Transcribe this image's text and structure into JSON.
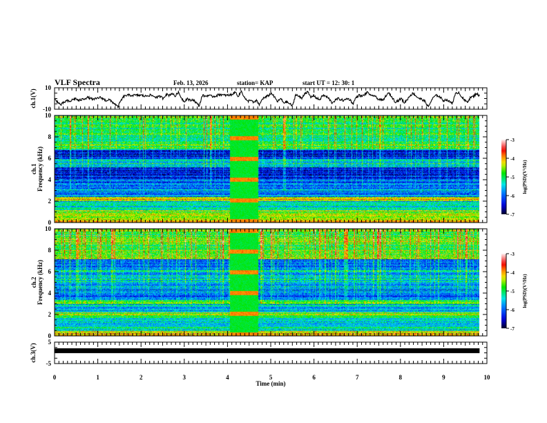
{
  "header": {
    "title": "VLF Spectra",
    "date": "Feb. 13, 2026",
    "station": "station= KAP",
    "start_ut": "start  UT =   12: 30: 1"
  },
  "chart_data": [
    {
      "id": "ch1-timeseries",
      "type": "line",
      "ylabel": "ch.1(V)",
      "ylim": [
        -10,
        10
      ],
      "yticks": [
        "10",
        "-10"
      ],
      "x_range_min": [
        0,
        10
      ],
      "data_end_min": 9.83,
      "description": "Noisy voltage waveform; mostly between about -8 and +6 V",
      "samples": [
        -1,
        -3,
        -6,
        -4,
        -2,
        -3,
        -1,
        0,
        -2,
        -1,
        0,
        1,
        0,
        -1,
        0,
        1,
        0,
        -2,
        -1,
        -3,
        -5,
        -8,
        -2,
        2,
        3,
        3,
        3,
        3,
        3,
        3,
        2,
        3,
        3,
        2,
        1,
        2,
        0,
        4,
        3,
        5,
        2,
        6,
        1,
        -3,
        0,
        -2,
        -1,
        -4,
        -7,
        3,
        2,
        3,
        2,
        2,
        3,
        4,
        3,
        3,
        3,
        4,
        6,
        2,
        7,
        1,
        -3,
        -1,
        -4,
        -2,
        -6,
        0,
        1,
        3,
        5,
        1,
        -3,
        0,
        -4,
        -3,
        -5,
        -7,
        4,
        2,
        0,
        5,
        6,
        1,
        3,
        0,
        -1,
        3,
        2,
        0,
        -4,
        -2,
        0,
        -1,
        -2,
        0,
        -1,
        -5,
        1,
        3,
        2,
        4,
        6,
        2,
        3,
        0,
        -1,
        -2,
        3,
        5,
        1,
        -3,
        -2,
        0,
        -4,
        -1,
        3,
        5,
        2,
        0,
        -1,
        -3,
        -8,
        -2,
        2,
        3,
        1,
        -2,
        -1,
        -3,
        -4,
        4,
        6,
        2,
        -2,
        -3,
        1,
        2,
        5,
        2
      ]
    },
    {
      "id": "ch1-spectrogram",
      "type": "heatmap",
      "ylabel": "ch.1 Frequency (kHz)",
      "ylim": [
        0,
        10
      ],
      "yticks": [
        "0",
        "2",
        "4",
        "6",
        "8",
        "10"
      ],
      "colorbar": {
        "label": "log(PSD)(V²/Hz)",
        "range": [
          -7,
          -3
        ],
        "ticks": [
          "-3",
          "-4",
          "-5",
          "-6",
          "-7"
        ]
      },
      "anomaly_interval_min": [
        4.05,
        4.7
      ],
      "bands_khz": [
        {
          "f": [
            0,
            0.3
          ],
          "level": -4.2
        },
        {
          "f": [
            0.3,
            1.2
          ],
          "level": -4.6
        },
        {
          "f": [
            1.2,
            2.0
          ],
          "level": -5.5
        },
        {
          "f": [
            2.0,
            2.4
          ],
          "level": -4.2
        },
        {
          "f": [
            2.4,
            3.2
          ],
          "level": -5.8
        },
        {
          "f": [
            3.2,
            4.0
          ],
          "level": -5.9
        },
        {
          "f": [
            4.0,
            5.2
          ],
          "level": -6.3
        },
        {
          "f": [
            5.2,
            6.0
          ],
          "level": -5.3
        },
        {
          "f": [
            6.0,
            6.8
          ],
          "level": -6.4
        },
        {
          "f": [
            6.8,
            10.0
          ],
          "level": -5.0
        }
      ]
    },
    {
      "id": "ch2-spectrogram",
      "type": "heatmap",
      "ylabel": "ch.2 Frequency (kHz)",
      "ylim": [
        0,
        10
      ],
      "yticks": [
        "0",
        "2",
        "4",
        "6",
        "8",
        "10"
      ],
      "colorbar": {
        "label": "log(PSD)(V²/Hz)",
        "range": [
          -7,
          -3
        ],
        "ticks": [
          "-3",
          "-4",
          "-5",
          "-6",
          "-7"
        ]
      },
      "anomaly_interval_min": [
        4.05,
        4.7
      ],
      "bands_khz": [
        {
          "f": [
            0,
            0.5
          ],
          "level": -4.0
        },
        {
          "f": [
            0.5,
            1.8
          ],
          "level": -5.3
        },
        {
          "f": [
            1.8,
            2.2
          ],
          "level": -4.6
        },
        {
          "f": [
            2.2,
            3.0
          ],
          "level": -5.6
        },
        {
          "f": [
            3.0,
            3.4
          ],
          "level": -4.6
        },
        {
          "f": [
            3.4,
            4.6
          ],
          "level": -5.9
        },
        {
          "f": [
            4.6,
            6.2
          ],
          "level": -5.5
        },
        {
          "f": [
            6.2,
            7.2
          ],
          "level": -6.0
        },
        {
          "f": [
            7.2,
            10.0
          ],
          "level": -4.8
        }
      ]
    },
    {
      "id": "ch3-timeseries",
      "type": "line",
      "ylabel": "ch.3(V)",
      "ylim": [
        -5,
        5
      ],
      "yticks": [
        "5",
        "-5"
      ],
      "constant_value": 1,
      "data_end_min": 9.83
    }
  ],
  "xaxis": {
    "label": "Time  (min)",
    "range": [
      0,
      10
    ],
    "ticks": [
      "0",
      "1",
      "2",
      "3",
      "4",
      "5",
      "6",
      "7",
      "8",
      "9",
      "10"
    ]
  }
}
